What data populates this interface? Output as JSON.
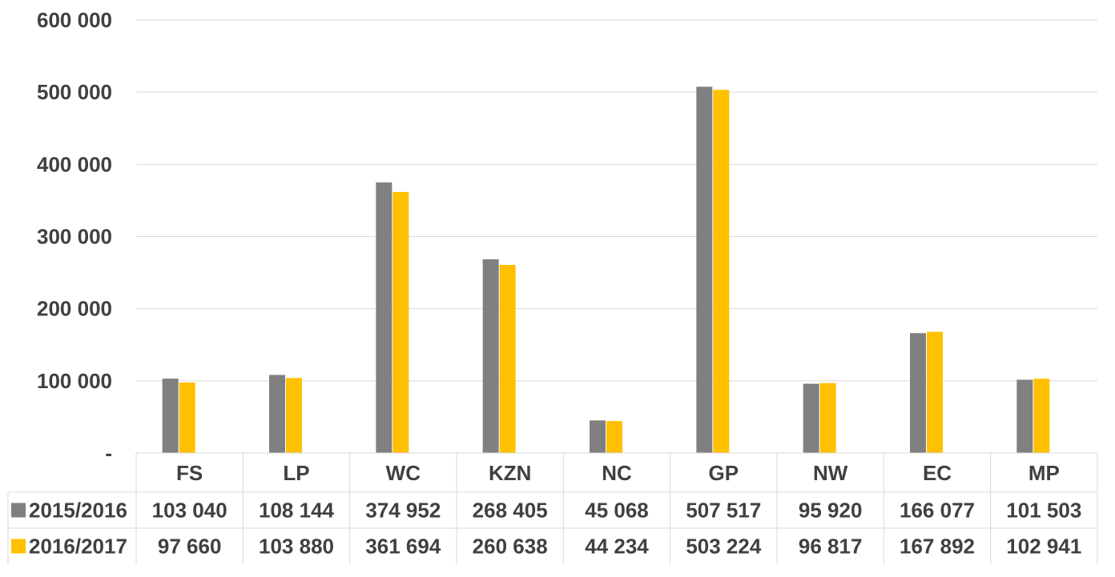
{
  "chart_data": {
    "type": "bar",
    "title": "",
    "xlabel": "",
    "ylabel": "",
    "categories": [
      "FS",
      "LP",
      "WC",
      "KZN",
      "NC",
      "GP",
      "NW",
      "EC",
      "MP"
    ],
    "series": [
      {
        "name": "2015/2016",
        "color": "#808080",
        "values": [
          103040,
          108144,
          374952,
          268405,
          45068,
          507517,
          95920,
          166077,
          101503
        ],
        "labels": [
          "103 040",
          "108 144",
          "374 952",
          "268 405",
          "45 068",
          "507 517",
          "95 920",
          "166 077",
          "101 503"
        ]
      },
      {
        "name": "2016/2017",
        "color": "#FFC000",
        "values": [
          97660,
          103880,
          361694,
          260638,
          44234,
          503224,
          96817,
          167892,
          102941
        ],
        "labels": [
          "97 660",
          "103 880",
          "361 694",
          "260 638",
          "44 234",
          "503 224",
          "96 817",
          "167 892",
          "102 941"
        ]
      }
    ],
    "ylim": [
      0,
      600000
    ],
    "yticks": [
      0,
      100000,
      200000,
      300000,
      400000,
      500000,
      600000
    ],
    "ytick_labels": [
      "-",
      "100 000",
      "200 000",
      "300 000",
      "400 000",
      "500 000",
      "600 000"
    ],
    "grid": true,
    "legend": "data-table-left"
  }
}
